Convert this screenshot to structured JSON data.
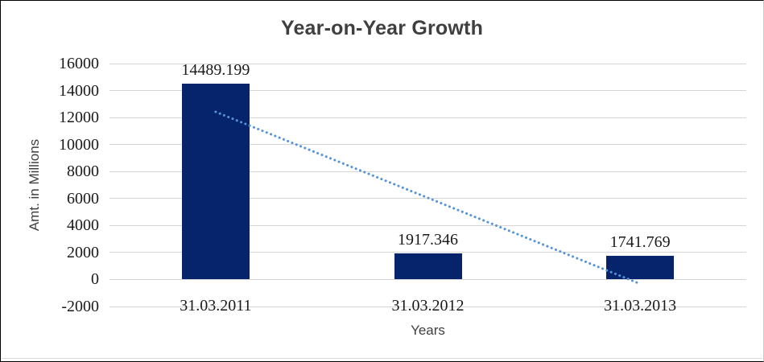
{
  "chart_data": {
    "type": "bar",
    "title": "Year-on-Year Growth",
    "xlabel": "Years",
    "ylabel": "Amt. in Millions",
    "categories": [
      "31.03.2011",
      "31.03.2012",
      "31.03.2013"
    ],
    "values": [
      14489.199,
      1917.346,
      1741.769
    ],
    "data_labels": [
      "14489.199",
      "1917.346",
      "1741.769"
    ],
    "ylim": [
      -2000,
      16000
    ],
    "ytick_step": 2000,
    "yticks": [
      16000,
      14000,
      12000,
      10000,
      8000,
      6000,
      4000,
      2000,
      0,
      -2000
    ],
    "grid": "horizontal",
    "legend_position": "none",
    "trendline": {
      "type": "linear",
      "style": "dotted",
      "start": {
        "category_index": 0,
        "value": 12423
      },
      "end": {
        "category_index": 2,
        "value": -324
      }
    }
  },
  "colors": {
    "bar": "#06246b",
    "trend": "#5593d8",
    "grid": "#d5d5d5",
    "tick_text": "#1a1a1a",
    "title_text": "#3f3f3f"
  }
}
